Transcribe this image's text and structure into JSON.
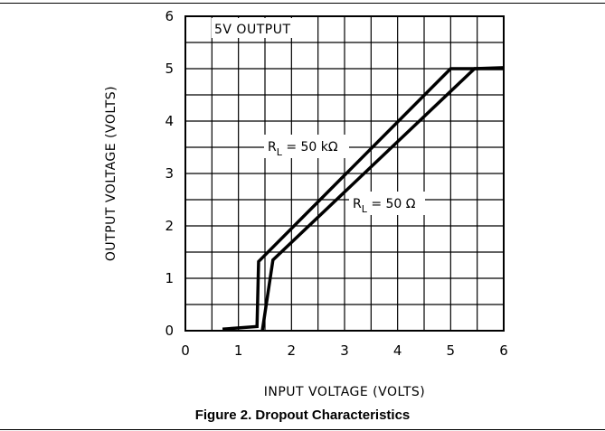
{
  "caption": "Figure 2. Dropout Characteristics",
  "chart_data": {
    "type": "line",
    "title": "",
    "panel_label": "5V OUTPUT",
    "xlabel": "INPUT VOLTAGE (VOLTS)",
    "ylabel": "OUTPUT VOLTAGE (VOLTS)",
    "xlim": [
      0,
      6
    ],
    "ylim": [
      0,
      6
    ],
    "xticks": [
      "0",
      "1",
      "2",
      "3",
      "4",
      "5",
      "6"
    ],
    "yticks": [
      "0",
      "1",
      "2",
      "3",
      "4",
      "5",
      "6"
    ],
    "grid": true,
    "grid_step": 0.5,
    "series": [
      {
        "name": "R_L = 50 kΩ",
        "label_main": "R",
        "label_sub": "L",
        "label_rest": " = 50 kΩ",
        "x": [
          0.7,
          1.35,
          1.38,
          5.0,
          6.0
        ],
        "y": [
          0.03,
          0.08,
          1.32,
          5.0,
          5.0
        ]
      },
      {
        "name": "R_L = 50 Ω",
        "label_main": "R",
        "label_sub": "L",
        "label_rest": " = 50 Ω",
        "x": [
          1.45,
          1.65,
          5.45,
          6.0
        ],
        "y": [
          0.0,
          1.35,
          5.0,
          5.02
        ]
      }
    ],
    "line_color": "#000000"
  }
}
